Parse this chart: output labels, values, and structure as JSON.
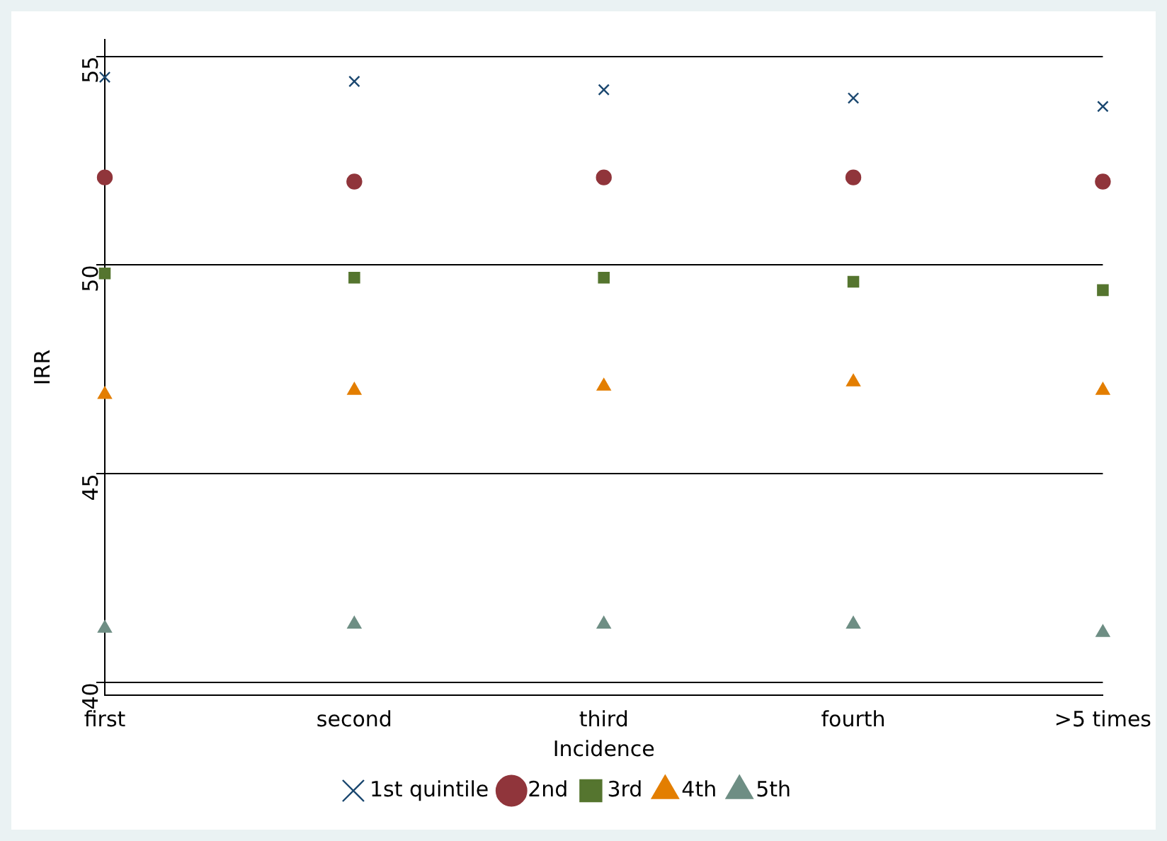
{
  "chart_data": {
    "type": "scatter",
    "xlabel": "Incidence",
    "ylabel": "IRR",
    "categories": [
      "first",
      "second",
      "third",
      "fourth",
      ">5 times"
    ],
    "series": [
      {
        "name": "1st quintile",
        "color": "#1a476f",
        "marker": "cross",
        "values": [
          54.5,
          54.4,
          54.2,
          54.0,
          53.8
        ]
      },
      {
        "name": "2nd",
        "color": "#90353b",
        "marker": "circle",
        "values": [
          52.1,
          52.0,
          52.1,
          52.1,
          52.0
        ]
      },
      {
        "name": "3rd",
        "color": "#55752f",
        "marker": "square",
        "values": [
          49.8,
          49.7,
          49.7,
          49.6,
          49.4
        ]
      },
      {
        "name": "4th",
        "color": "#e37e00",
        "marker": "triangle",
        "values": [
          46.9,
          47.0,
          47.1,
          47.2,
          47.0
        ]
      },
      {
        "name": "5th",
        "color": "#6e8e84",
        "marker": "triangle",
        "values": [
          41.3,
          41.4,
          41.4,
          41.4,
          41.2
        ]
      }
    ],
    "ylim": [
      39.7,
      55.4
    ],
    "yticks": [
      40,
      45,
      50,
      55
    ],
    "grid": "y",
    "legend": "bottom"
  }
}
